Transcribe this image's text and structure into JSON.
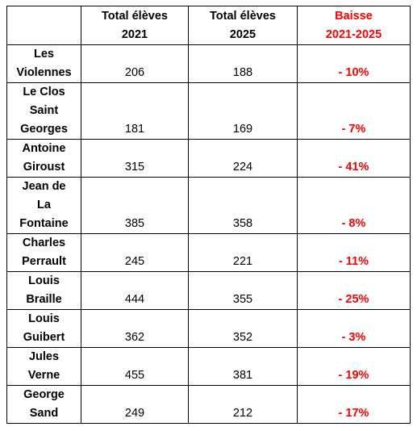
{
  "header": {
    "col_name": "",
    "col_2021": [
      "Total élèves",
      "2021"
    ],
    "col_2025": [
      "Total élèves",
      "2025"
    ],
    "col_drop": [
      "Baisse",
      "2021-2025"
    ]
  },
  "rows": [
    {
      "name": [
        "Les",
        "Violennes"
      ],
      "v2021": "206",
      "v2025": "188",
      "drop": "- 10%"
    },
    {
      "name": [
        "Le Clos",
        "Saint",
        "Georges"
      ],
      "v2021": "181",
      "v2025": "169",
      "drop": "- 7%"
    },
    {
      "name": [
        "Antoine",
        "Giroust"
      ],
      "v2021": "315",
      "v2025": "224",
      "drop": "- 41%"
    },
    {
      "name": [
        "Jean de",
        "La",
        "Fontaine"
      ],
      "v2021": "385",
      "v2025": "358",
      "drop": "- 8%"
    },
    {
      "name": [
        "Charles",
        "Perrault"
      ],
      "v2021": "245",
      "v2025": "221",
      "drop": "- 11%"
    },
    {
      "name": [
        "Louis",
        "Braille"
      ],
      "v2021": "444",
      "v2025": "355",
      "drop": "- 25%"
    },
    {
      "name": [
        "Louis",
        "Guibert"
      ],
      "v2021": "362",
      "v2025": "352",
      "drop": "- 3%"
    },
    {
      "name": [
        "Jules",
        "Verne"
      ],
      "v2021": "455",
      "v2025": "381",
      "drop": "- 19%"
    },
    {
      "name": [
        "George",
        "Sand"
      ],
      "v2021": "249",
      "v2025": "212",
      "drop": "- 17%"
    }
  ],
  "colors": {
    "text": "#000000",
    "accent_red": "#ff0000",
    "border": "#000000"
  }
}
